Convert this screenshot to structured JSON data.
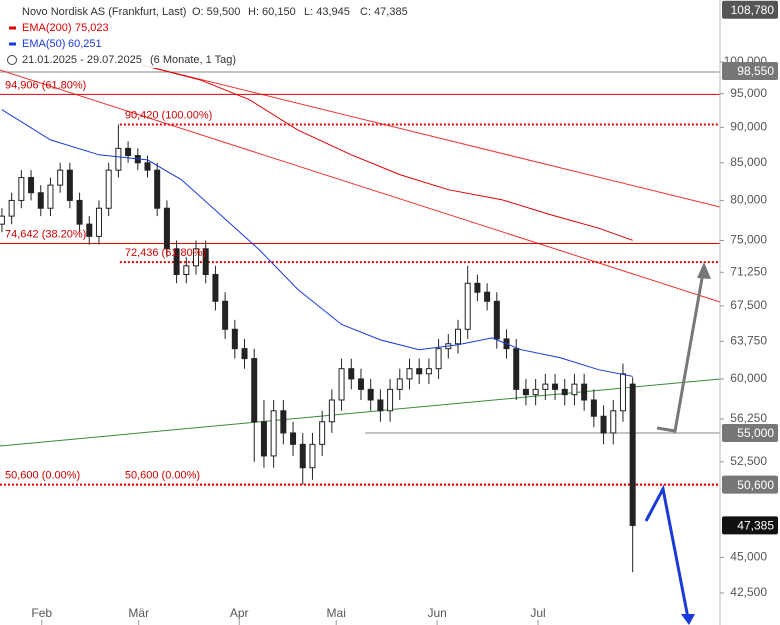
{
  "chart_data": {
    "type": "candlestick",
    "title": "Novo Nordisk AS (Frankfurt, Last)",
    "ohlc_labels": [
      "O: 59,500",
      "H: 60,150",
      "L: 43,945",
      "C: 47,385"
    ],
    "period": "21.01.2025 - 29.07.2025",
    "period_note": "(6 Monate, 1 Tag)",
    "log_scale": true,
    "xlim": [
      -0.4,
      148
    ],
    "ylim": [
      40.36,
      110.5
    ],
    "xticks": [
      {
        "value": 8.2,
        "label": "Feb"
      },
      {
        "value": 28.2,
        "label": "Mär"
      },
      {
        "value": 48.9,
        "label": "Apr"
      },
      {
        "value": 68.9,
        "label": "Mai"
      },
      {
        "value": 89.7,
        "label": "Jun"
      },
      {
        "value": 110.5,
        "label": "Jul"
      }
    ],
    "yticks": [
      {
        "value": 100,
        "label": "100,000"
      },
      {
        "value": 95,
        "label": "95,000"
      },
      {
        "value": 90,
        "label": "90,000"
      },
      {
        "value": 85,
        "label": "85,000"
      },
      {
        "value": 80,
        "label": "80,000"
      },
      {
        "value": 75,
        "label": "75,000"
      },
      {
        "value": 71.25,
        "label": "71,250"
      },
      {
        "value": 67.5,
        "label": "67,500"
      },
      {
        "value": 63.75,
        "label": "63,750"
      },
      {
        "value": 60,
        "label": "60,000"
      },
      {
        "value": 56.25,
        "label": "56,250"
      },
      {
        "value": 52.5,
        "label": "52,500"
      },
      {
        "value": 45,
        "label": "45,000"
      },
      {
        "value": 42.5,
        "label": "42,500"
      }
    ],
    "candles": {
      "x": [
        0,
        2,
        4,
        6,
        8,
        10,
        12,
        14,
        16,
        18,
        20,
        22,
        24,
        26,
        28,
        30,
        32,
        34,
        36,
        38,
        40,
        42,
        44,
        46,
        48,
        50,
        52,
        54,
        56,
        58,
        60,
        62,
        64,
        66,
        68,
        70,
        72,
        74,
        76,
        78,
        80,
        82,
        84,
        86,
        88,
        90,
        92,
        94,
        96,
        98,
        100,
        102,
        104,
        106,
        108,
        110,
        112,
        114,
        116,
        118,
        120,
        122,
        124,
        126,
        128,
        130
      ],
      "open": [
        77,
        78,
        80,
        83,
        81,
        79,
        82,
        84,
        80,
        77,
        75.5,
        79,
        84,
        87,
        86,
        85,
        84,
        79,
        74,
        71,
        72,
        74,
        71,
        68,
        65,
        63,
        62,
        56,
        53,
        57,
        55,
        54,
        52,
        54,
        56,
        58,
        61,
        60,
        59,
        58,
        57,
        59,
        60,
        61,
        60.5,
        61,
        63,
        63.5,
        65,
        70,
        69,
        68,
        64,
        63,
        59,
        58.5,
        59,
        59.5,
        59,
        58.5,
        59.5,
        58,
        56.5,
        55,
        57,
        59.5
      ],
      "high": [
        79,
        81,
        84,
        84,
        82,
        83,
        85,
        85,
        81,
        78,
        80,
        85,
        90.42,
        88,
        87,
        86,
        85,
        80,
        75,
        73,
        75,
        75,
        72,
        69,
        66,
        64,
        63,
        58,
        58,
        58,
        56,
        55,
        55,
        57,
        59,
        62,
        62,
        61,
        60,
        59,
        60,
        61,
        62,
        62,
        62,
        64,
        64.5,
        66,
        72,
        71,
        70,
        69,
        65,
        64,
        60,
        60,
        60.5,
        60.5,
        60,
        60.5,
        60.5,
        59,
        57.5,
        58,
        61.5,
        60.15
      ],
      "low": [
        76,
        77,
        79,
        80,
        78,
        78,
        81,
        79,
        76,
        74.5,
        74.5,
        78,
        83,
        85,
        84,
        83,
        78,
        73,
        70,
        70,
        71,
        70,
        67,
        64,
        62,
        61,
        52.5,
        52,
        52,
        54,
        53,
        50.6,
        51,
        53,
        55,
        57,
        59,
        58,
        57,
        56,
        56,
        58,
        59,
        59.5,
        59.5,
        60,
        62,
        62.5,
        64,
        68,
        67,
        63,
        62,
        58,
        57.5,
        57.5,
        58,
        58,
        57.5,
        57.5,
        57,
        55.5,
        54,
        54,
        56,
        43.945
      ],
      "close": [
        78,
        80,
        83,
        81,
        79,
        82,
        84,
        80,
        77,
        75.5,
        79,
        84,
        87,
        86,
        85,
        84,
        79,
        74,
        71,
        72,
        74,
        71,
        68,
        65,
        63,
        62,
        56,
        53,
        57,
        55,
        54,
        52,
        54,
        56,
        58,
        61,
        60,
        59,
        58,
        57,
        59,
        60,
        61,
        60.5,
        61,
        63,
        63.5,
        65,
        70,
        69,
        68,
        64,
        63,
        59,
        58.5,
        59,
        59.5,
        59,
        58.5,
        59.5,
        58,
        56.5,
        55,
        57,
        60.5,
        47.385
      ]
    },
    "series": [
      {
        "name": "EMA(200)",
        "color": "#e00000",
        "value_label": "75,023",
        "x": [
          29,
          41,
          51,
          61,
          72,
          82,
          92,
          103,
          113,
          123,
          130
        ],
        "values": [
          99.5,
          97.1,
          94.1,
          89.6,
          86.1,
          83.4,
          81.4,
          80.1,
          78.2,
          76.5,
          75.023
        ]
      },
      {
        "name": "EMA(50)",
        "color": "#1a3ad8",
        "value_label": "60,251",
        "x": [
          0,
          10,
          20,
          30,
          37,
          45,
          53,
          61,
          70,
          78,
          86,
          94,
          101,
          107,
          115,
          123,
          130
        ],
        "values": [
          92.6,
          88.2,
          86.1,
          85.4,
          82.7,
          78.2,
          73.9,
          69.3,
          65.5,
          63.9,
          62.9,
          63.4,
          64.1,
          62.9,
          62.1,
          60.9,
          60.251
        ]
      }
    ],
    "levels": [
      {
        "label": "94,906 (61.80%)",
        "value": 94.906,
        "style": "solid",
        "x_start": -0.4
      },
      {
        "label": "90,420 (100.00%)",
        "value": 90.42,
        "style": "dotted",
        "x_start": 24.3
      },
      {
        "label": "74,642 (38.20%)",
        "value": 74.642,
        "style": "solid",
        "x_start": -0.4
      },
      {
        "label": "72,436 (61.80%)",
        "value": 72.436,
        "style": "dotted",
        "x_start": 24.3
      },
      {
        "label": "50,600 (0.00%)",
        "value": 50.6,
        "style": "dotted",
        "x_start": -0.4
      },
      {
        "label": "50,600 (0.00%)",
        "value": 50.6,
        "style": "dotted",
        "x_start": 24.3
      }
    ],
    "badges": [
      {
        "value": 108.78,
        "label": "108,780",
        "color": "#555555"
      },
      {
        "value": 98.55,
        "label": "98,550",
        "color": "#777777"
      },
      {
        "value": 55,
        "label": "55,000",
        "color": "#777777"
      },
      {
        "value": 50.6,
        "label": "50,600",
        "color": "#777777"
      },
      {
        "value": 47.385,
        "label": "47,385",
        "color": "#111111"
      }
    ]
  }
}
